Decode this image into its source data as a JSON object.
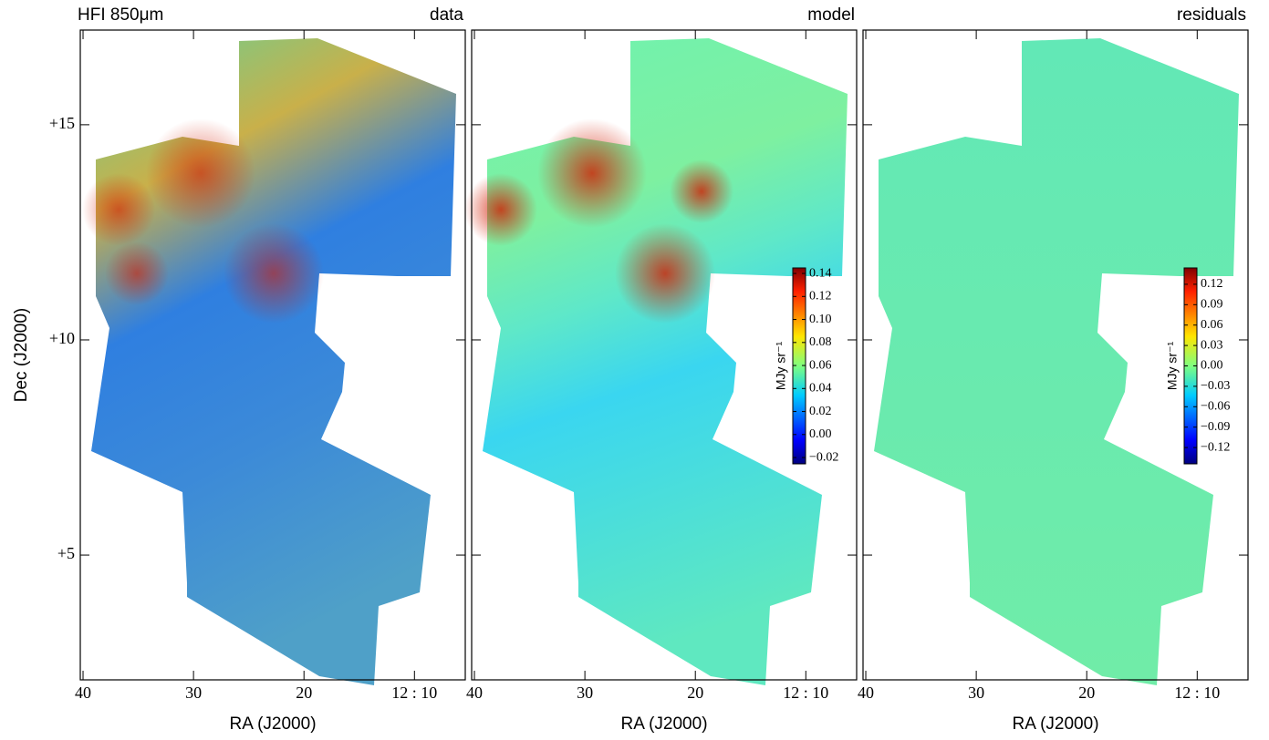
{
  "chart_data": [
    {
      "type": "image",
      "label": "HFI 850μm",
      "title": "data",
      "xlabel": "RA (J2000)",
      "ylabel": "Dec (J2000)",
      "xlim": [
        40.25,
        5.4
      ],
      "xticks": [
        40,
        30,
        20,
        {
          "value": 10,
          "label": "12 : 10"
        }
      ],
      "ylim": [
        2.1,
        17.2
      ],
      "yticks": [
        {
          "value": 5,
          "label": "+5"
        },
        {
          "value": 10,
          "label": "+10"
        },
        {
          "value": 15,
          "label": "+15"
        }
      ]
    },
    {
      "type": "image",
      "title": "model",
      "xlabel": "RA (J2000)",
      "xlim": [
        40.25,
        5.4
      ],
      "xticks": [
        40,
        30,
        20,
        {
          "value": 10,
          "label": "12 : 10"
        }
      ],
      "ylim": [
        2.1,
        17.2
      ],
      "yticks": [
        5,
        10,
        15
      ],
      "colorbar": {
        "label": "MJy sr⁻¹",
        "lim": [
          -0.0255,
          0.1448
        ],
        "ticks": [
          {
            "value": -0.02,
            "label": "−0.02"
          },
          {
            "value": 0,
            "label": "0.00"
          },
          {
            "value": 0.02,
            "label": "0.02"
          },
          {
            "value": 0.04,
            "label": "0.04"
          },
          {
            "value": 0.06,
            "label": "0.06"
          },
          {
            "value": 0.08,
            "label": "0.08"
          },
          {
            "value": 0.1,
            "label": "0.10"
          },
          {
            "value": 0.12,
            "label": "0.12"
          },
          {
            "value": 0.14,
            "label": "0.14"
          }
        ]
      }
    },
    {
      "type": "image",
      "title": "residuals",
      "xlabel": "RA (J2000)",
      "xlim": [
        40.25,
        5.4
      ],
      "xticks": [
        40,
        30,
        20,
        {
          "value": 10,
          "label": "12 : 10"
        }
      ],
      "ylim": [
        2.1,
        17.2
      ],
      "yticks": [
        5,
        10,
        15
      ],
      "colorbar": {
        "label": "MJy sr⁻¹",
        "lim": [
          -0.144,
          0.144
        ],
        "ticks": [
          {
            "value": -0.12,
            "label": "−0.12"
          },
          {
            "value": -0.09,
            "label": "−0.09"
          },
          {
            "value": -0.06,
            "label": "−0.06"
          },
          {
            "value": -0.03,
            "label": "−0.03"
          },
          {
            "value": 0,
            "label": "0.00"
          },
          {
            "value": 0.03,
            "label": "0.03"
          },
          {
            "value": 0.06,
            "label": "0.06"
          },
          {
            "value": 0.09,
            "label": "0.09"
          },
          {
            "value": 0.12,
            "label": "0.12"
          }
        ]
      }
    }
  ]
}
